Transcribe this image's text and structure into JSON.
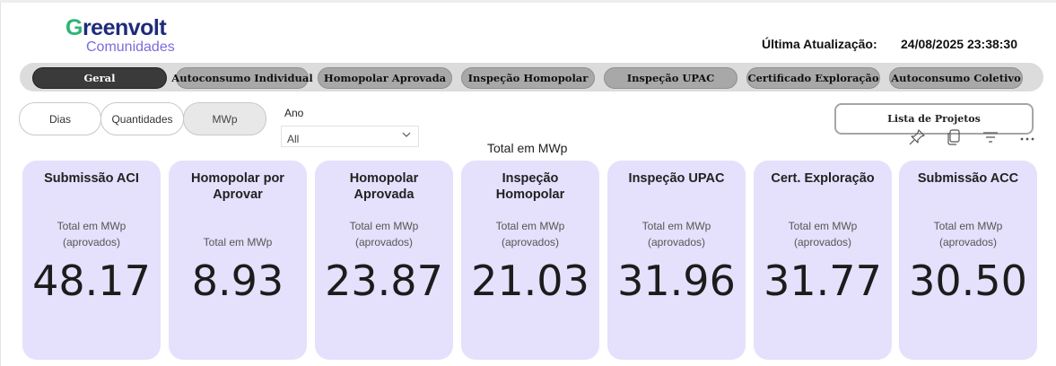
{
  "logo": {
    "top_text_g": "G",
    "top_text_rest": "reenvolt",
    "sub_text": "Comunidades"
  },
  "header": {
    "update_label": "Última Atualização:",
    "update_value": "24/08/2025 23:38:30"
  },
  "tabs": [
    {
      "label": "Geral",
      "active": true
    },
    {
      "label": "Autoconsumo Individual",
      "active": false
    },
    {
      "label": "Homopolar Aprovada",
      "active": false
    },
    {
      "label": "Inspeção Homopolar",
      "active": false
    },
    {
      "label": "Inspeção UPAC",
      "active": false
    },
    {
      "label": "Certificado Exploração",
      "active": false
    },
    {
      "label": "Autoconsumo Coletivo",
      "active": false
    }
  ],
  "view_toggle": {
    "options": [
      "Dias",
      "Quantidades",
      "MWp"
    ],
    "selected": "MWp"
  },
  "year_filter": {
    "label": "Ano",
    "value": "All"
  },
  "projects_button": {
    "label": "Lista de Projetos"
  },
  "section_title": "Total em MWp",
  "visual_tools": [
    "pin-icon",
    "copy-icon",
    "filter-icon",
    "more-options-icon"
  ],
  "cards": [
    {
      "title": "Submissão ACI",
      "subtitle": [
        "Total em MWp",
        "(aprovados)"
      ],
      "value": "48.17"
    },
    {
      "title": "Homopolar por Aprovar",
      "subtitle": [
        "Total em MWp"
      ],
      "value": "8.93"
    },
    {
      "title": "Homopolar Aprovada",
      "subtitle": [
        "Total em MWp",
        "(aprovados)"
      ],
      "value": "23.87"
    },
    {
      "title": "Inspeção Homopolar",
      "subtitle": [
        "Total em MWp",
        "(aprovados)"
      ],
      "value": "21.03"
    },
    {
      "title": "Inspeção UPAC",
      "subtitle": [
        "Total em MWp",
        "(aprovados)"
      ],
      "value": "31.96"
    },
    {
      "title": "Cert. Exploração",
      "subtitle": [
        "Total em MWp",
        "(aprovados)"
      ],
      "value": "31.77"
    },
    {
      "title": "Submissão ACC",
      "subtitle": [
        "Total em MWp",
        "(aprovados)"
      ],
      "value": "30.50"
    }
  ],
  "colors": {
    "card_bg": "#e5e0fb",
    "tab_active": "#3a3a3a",
    "tab_inactive": "#a8a8a8",
    "logo_green": "#2bb673",
    "logo_purple": "#7a6cdc"
  }
}
